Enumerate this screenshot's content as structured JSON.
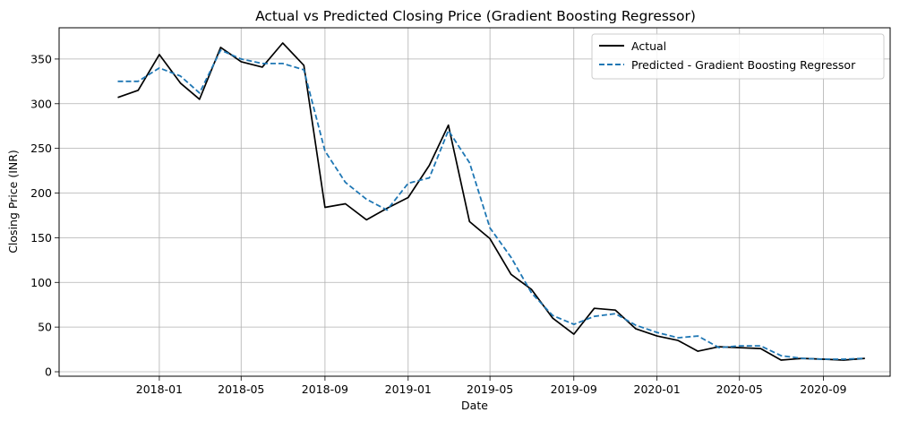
{
  "chart_data": {
    "type": "line",
    "title": "Actual vs Predicted Closing Price (Gradient Boosting Regressor)",
    "xlabel": "Date",
    "ylabel": "Closing Price (INR)",
    "x_ticks": [
      "2018-01",
      "2018-05",
      "2018-09",
      "2019-01",
      "2019-05",
      "2019-09",
      "2020-01",
      "2020-05",
      "2020-09"
    ],
    "y_ticks": [
      0,
      50,
      100,
      150,
      200,
      250,
      300,
      350
    ],
    "xlim": [
      "2017-08-07",
      "2020-12-08"
    ],
    "ylim": [
      -5,
      385
    ],
    "grid": true,
    "legend_position": "top-right",
    "x": [
      "2017-11-01",
      "2017-12-01",
      "2018-01-01",
      "2018-02-01",
      "2018-03-01",
      "2018-04-01",
      "2018-05-01",
      "2018-06-01",
      "2018-07-01",
      "2018-08-01",
      "2018-09-01",
      "2018-10-01",
      "2018-11-01",
      "2018-12-01",
      "2019-01-01",
      "2019-02-01",
      "2019-03-01",
      "2019-04-01",
      "2019-05-01",
      "2019-06-01",
      "2019-07-01",
      "2019-08-01",
      "2019-09-01",
      "2019-10-01",
      "2019-11-01",
      "2019-12-01",
      "2020-01-01",
      "2020-02-01",
      "2020-03-01",
      "2020-04-01",
      "2020-05-01",
      "2020-06-01",
      "2020-07-01",
      "2020-08-01",
      "2020-09-01",
      "2020-10-01",
      "2020-11-01"
    ],
    "series": [
      {
        "name": "Actual",
        "color": "#000000",
        "style": "solid",
        "values": [
          307,
          315,
          355,
          323,
          305,
          363,
          347,
          341,
          368,
          343,
          184,
          188,
          170,
          183,
          195,
          231,
          276,
          168,
          149,
          109,
          92,
          60,
          42,
          71,
          69,
          48,
          40,
          35,
          23,
          28,
          27,
          26,
          13,
          15,
          14,
          13,
          15
        ]
      },
      {
        "name": "Predicted - Gradient Boosting Regressor",
        "color": "#1f77b4",
        "style": "dashed",
        "values": [
          325,
          325,
          340,
          331,
          312,
          360,
          350,
          345,
          345,
          338,
          247,
          212,
          193,
          181,
          211,
          217,
          270,
          234,
          161,
          128,
          88,
          63,
          53,
          62,
          65,
          52,
          44,
          38,
          40,
          27,
          29,
          29,
          18,
          15,
          14,
          14,
          15
        ]
      }
    ]
  }
}
